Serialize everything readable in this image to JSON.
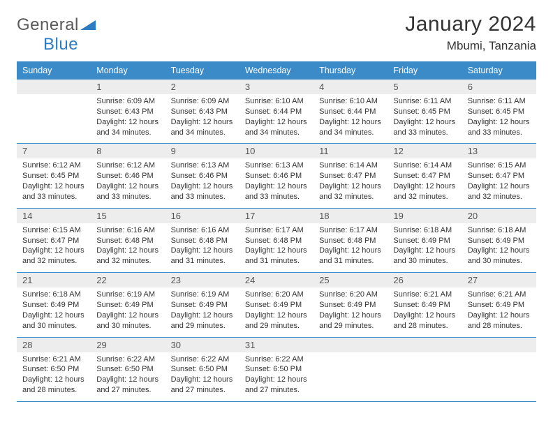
{
  "logo": {
    "word1": "General",
    "word2": "Blue"
  },
  "title": "January 2024",
  "location": "Mbumi, Tanzania",
  "colors": {
    "header_bg": "#3b8bc9",
    "header_text": "#ffffff",
    "numrow_bg": "#ededed",
    "rule": "#3b8bc9",
    "text": "#333333",
    "logo_gray": "#5a5a5a",
    "logo_blue": "#2d7cc1"
  },
  "dow": [
    "Sunday",
    "Monday",
    "Tuesday",
    "Wednesday",
    "Thursday",
    "Friday",
    "Saturday"
  ],
  "weeks": [
    [
      null,
      {
        "n": "1",
        "sr": "6:09 AM",
        "ss": "6:43 PM",
        "dl": "12 hours and 34 minutes."
      },
      {
        "n": "2",
        "sr": "6:09 AM",
        "ss": "6:43 PM",
        "dl": "12 hours and 34 minutes."
      },
      {
        "n": "3",
        "sr": "6:10 AM",
        "ss": "6:44 PM",
        "dl": "12 hours and 34 minutes."
      },
      {
        "n": "4",
        "sr": "6:10 AM",
        "ss": "6:44 PM",
        "dl": "12 hours and 34 minutes."
      },
      {
        "n": "5",
        "sr": "6:11 AM",
        "ss": "6:45 PM",
        "dl": "12 hours and 33 minutes."
      },
      {
        "n": "6",
        "sr": "6:11 AM",
        "ss": "6:45 PM",
        "dl": "12 hours and 33 minutes."
      }
    ],
    [
      {
        "n": "7",
        "sr": "6:12 AM",
        "ss": "6:45 PM",
        "dl": "12 hours and 33 minutes."
      },
      {
        "n": "8",
        "sr": "6:12 AM",
        "ss": "6:46 PM",
        "dl": "12 hours and 33 minutes."
      },
      {
        "n": "9",
        "sr": "6:13 AM",
        "ss": "6:46 PM",
        "dl": "12 hours and 33 minutes."
      },
      {
        "n": "10",
        "sr": "6:13 AM",
        "ss": "6:46 PM",
        "dl": "12 hours and 33 minutes."
      },
      {
        "n": "11",
        "sr": "6:14 AM",
        "ss": "6:47 PM",
        "dl": "12 hours and 32 minutes."
      },
      {
        "n": "12",
        "sr": "6:14 AM",
        "ss": "6:47 PM",
        "dl": "12 hours and 32 minutes."
      },
      {
        "n": "13",
        "sr": "6:15 AM",
        "ss": "6:47 PM",
        "dl": "12 hours and 32 minutes."
      }
    ],
    [
      {
        "n": "14",
        "sr": "6:15 AM",
        "ss": "6:47 PM",
        "dl": "12 hours and 32 minutes."
      },
      {
        "n": "15",
        "sr": "6:16 AM",
        "ss": "6:48 PM",
        "dl": "12 hours and 32 minutes."
      },
      {
        "n": "16",
        "sr": "6:16 AM",
        "ss": "6:48 PM",
        "dl": "12 hours and 31 minutes."
      },
      {
        "n": "17",
        "sr": "6:17 AM",
        "ss": "6:48 PM",
        "dl": "12 hours and 31 minutes."
      },
      {
        "n": "18",
        "sr": "6:17 AM",
        "ss": "6:48 PM",
        "dl": "12 hours and 31 minutes."
      },
      {
        "n": "19",
        "sr": "6:18 AM",
        "ss": "6:49 PM",
        "dl": "12 hours and 30 minutes."
      },
      {
        "n": "20",
        "sr": "6:18 AM",
        "ss": "6:49 PM",
        "dl": "12 hours and 30 minutes."
      }
    ],
    [
      {
        "n": "21",
        "sr": "6:18 AM",
        "ss": "6:49 PM",
        "dl": "12 hours and 30 minutes."
      },
      {
        "n": "22",
        "sr": "6:19 AM",
        "ss": "6:49 PM",
        "dl": "12 hours and 30 minutes."
      },
      {
        "n": "23",
        "sr": "6:19 AM",
        "ss": "6:49 PM",
        "dl": "12 hours and 29 minutes."
      },
      {
        "n": "24",
        "sr": "6:20 AM",
        "ss": "6:49 PM",
        "dl": "12 hours and 29 minutes."
      },
      {
        "n": "25",
        "sr": "6:20 AM",
        "ss": "6:49 PM",
        "dl": "12 hours and 29 minutes."
      },
      {
        "n": "26",
        "sr": "6:21 AM",
        "ss": "6:49 PM",
        "dl": "12 hours and 28 minutes."
      },
      {
        "n": "27",
        "sr": "6:21 AM",
        "ss": "6:49 PM",
        "dl": "12 hours and 28 minutes."
      }
    ],
    [
      {
        "n": "28",
        "sr": "6:21 AM",
        "ss": "6:50 PM",
        "dl": "12 hours and 28 minutes."
      },
      {
        "n": "29",
        "sr": "6:22 AM",
        "ss": "6:50 PM",
        "dl": "12 hours and 27 minutes."
      },
      {
        "n": "30",
        "sr": "6:22 AM",
        "ss": "6:50 PM",
        "dl": "12 hours and 27 minutes."
      },
      {
        "n": "31",
        "sr": "6:22 AM",
        "ss": "6:50 PM",
        "dl": "12 hours and 27 minutes."
      },
      null,
      null,
      null
    ]
  ],
  "labels": {
    "sunrise": "Sunrise:",
    "sunset": "Sunset:",
    "daylight": "Daylight:"
  }
}
